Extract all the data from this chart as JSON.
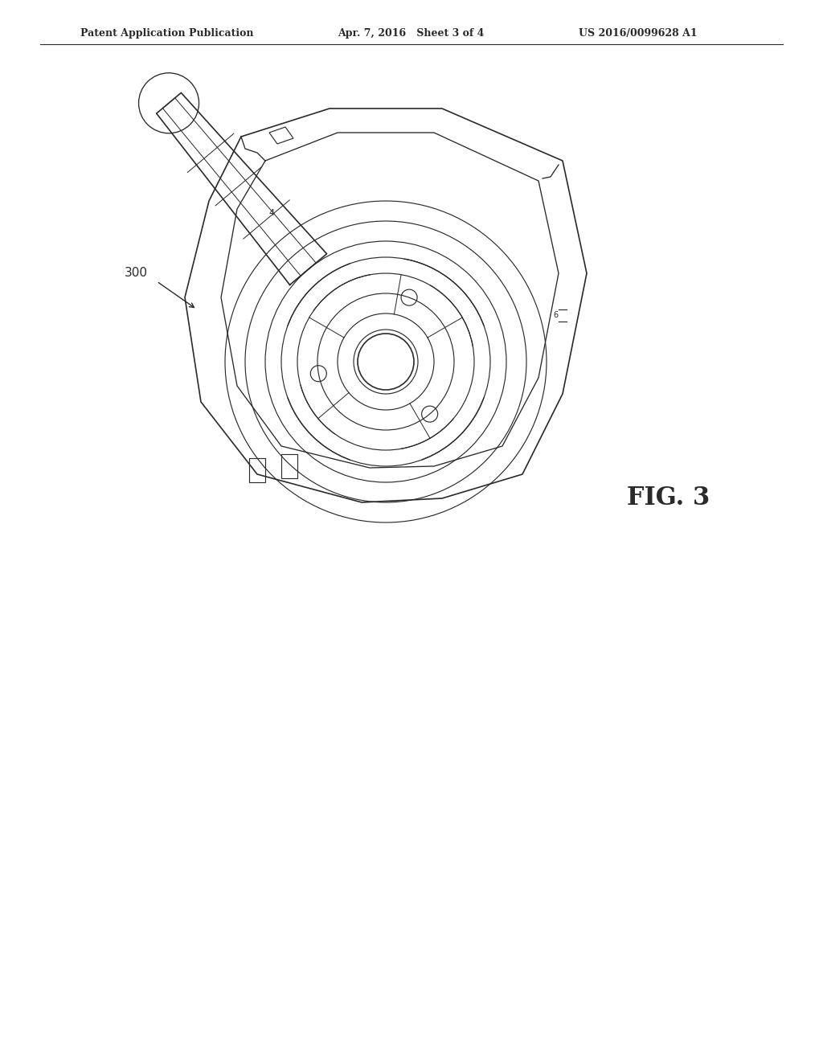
{
  "bg_color": "#ffffff",
  "line_color": "#2a2a2a",
  "header_left": "Patent Application Publication",
  "header_mid": "Apr. 7, 2016   Sheet 3 of 4",
  "header_right": "US 2016/0099628 A1",
  "fig_label": "FIG. 3",
  "part_label": "300",
  "figsize": [
    10.24,
    13.2
  ],
  "dpi": 100
}
